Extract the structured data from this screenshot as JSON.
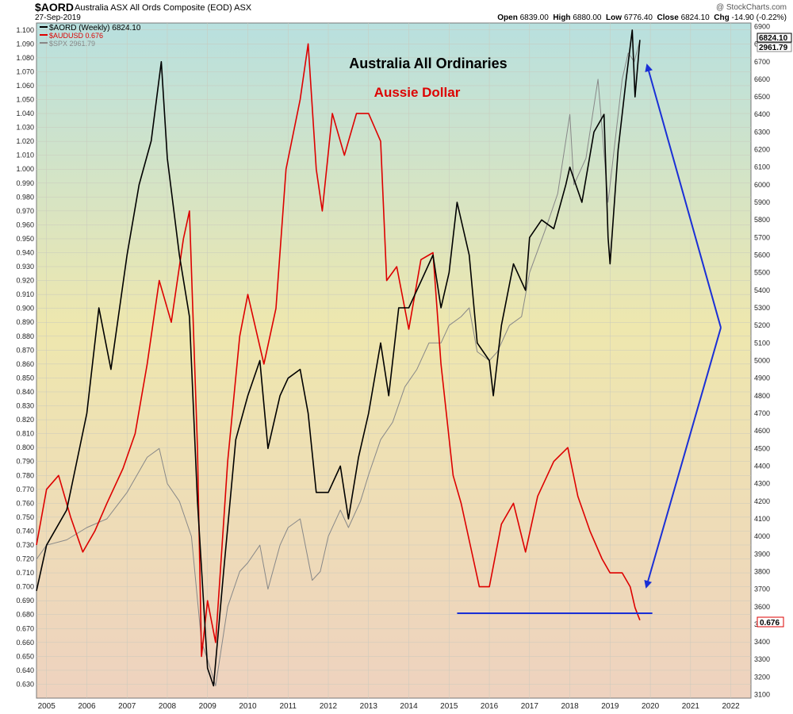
{
  "header": {
    "symbol": "$AORD",
    "full_name": "Australia ASX All Ords Composite (EOD) ASX",
    "date": "27-Sep-2019",
    "credit": "@ StockCharts.com",
    "ohlc": {
      "open_label": "Open",
      "open": "6839.00",
      "high_label": "High",
      "high": "6880.00",
      "low_label": "Low",
      "low": "6776.40",
      "close_label": "Close",
      "close": "6824.10",
      "chg_label": "Chg",
      "chg": "-14.90 (-0.22%)"
    }
  },
  "legend": [
    {
      "label": "$AORD (Weekly) 6824.10",
      "color": "#000000"
    },
    {
      "label": "$AUDUSD 0.676",
      "color": "#dd0000"
    },
    {
      "label": "$SPX 2961.79",
      "color": "#888888"
    }
  ],
  "annotations": {
    "title": "Australia All Ordinaries",
    "subtitle": "Aussie Dollar",
    "arrow_color": "#1a2fd6"
  },
  "price_tags": {
    "aord": "6824.10",
    "spx": "2961.79",
    "aud": "0.676"
  },
  "chart_data": {
    "type": "line",
    "x_ticks": [
      "2005",
      "2006",
      "2007",
      "2008",
      "2009",
      "2010",
      "2011",
      "2012",
      "2013",
      "2014",
      "2015",
      "2016",
      "2017",
      "2018",
      "2019",
      "2020",
      "2021",
      "2022"
    ],
    "left_axis": {
      "series": "$AUDUSD",
      "ylim": [
        0.62,
        1.105
      ],
      "ticks": [
        0.63,
        0.64,
        0.65,
        0.66,
        0.67,
        0.68,
        0.69,
        0.7,
        0.71,
        0.72,
        0.73,
        0.74,
        0.75,
        0.76,
        0.77,
        0.78,
        0.79,
        0.8,
        0.81,
        0.82,
        0.83,
        0.84,
        0.85,
        0.86,
        0.87,
        0.88,
        0.89,
        0.9,
        0.91,
        0.92,
        0.93,
        0.94,
        0.95,
        0.96,
        0.97,
        0.98,
        0.99,
        1.0,
        1.01,
        1.02,
        1.03,
        1.04,
        1.05,
        1.06,
        1.07,
        1.08,
        1.09,
        1.1
      ]
    },
    "right_axis": {
      "series": "$AORD",
      "ylim": [
        3080,
        6920
      ],
      "ticks": [
        3100,
        3200,
        3300,
        3400,
        3500,
        3600,
        3700,
        3800,
        3900,
        4000,
        4100,
        4200,
        4300,
        4400,
        4500,
        4600,
        4700,
        4800,
        4900,
        5000,
        5100,
        5200,
        5300,
        5400,
        5500,
        5600,
        5700,
        5800,
        5900,
        6000,
        6100,
        6200,
        6300,
        6400,
        6500,
        6600,
        6700,
        6800,
        6900
      ]
    },
    "series": [
      {
        "name": "$AORD (Weekly)",
        "axis": "right",
        "color": "#000000",
        "points": [
          [
            2004.75,
            3690
          ],
          [
            2005.0,
            3950
          ],
          [
            2005.5,
            4150
          ],
          [
            2006.0,
            4700
          ],
          [
            2006.3,
            5300
          ],
          [
            2006.6,
            4950
          ],
          [
            2007.0,
            5600
          ],
          [
            2007.3,
            6000
          ],
          [
            2007.6,
            6250
          ],
          [
            2007.85,
            6700
          ],
          [
            2008.0,
            6150
          ],
          [
            2008.3,
            5600
          ],
          [
            2008.55,
            5250
          ],
          [
            2008.75,
            4200
          ],
          [
            2009.0,
            3250
          ],
          [
            2009.15,
            3150
          ],
          [
            2009.4,
            3800
          ],
          [
            2009.7,
            4550
          ],
          [
            2010.0,
            4800
          ],
          [
            2010.3,
            5000
          ],
          [
            2010.5,
            4500
          ],
          [
            2010.8,
            4800
          ],
          [
            2011.0,
            4900
          ],
          [
            2011.3,
            4950
          ],
          [
            2011.5,
            4700
          ],
          [
            2011.7,
            4250
          ],
          [
            2012.0,
            4250
          ],
          [
            2012.3,
            4400
          ],
          [
            2012.5,
            4100
          ],
          [
            2012.75,
            4450
          ],
          [
            2013.0,
            4700
          ],
          [
            2013.3,
            5100
          ],
          [
            2013.5,
            4800
          ],
          [
            2013.75,
            5300
          ],
          [
            2014.0,
            5300
          ],
          [
            2014.3,
            5450
          ],
          [
            2014.6,
            5600
          ],
          [
            2014.8,
            5300
          ],
          [
            2015.0,
            5500
          ],
          [
            2015.2,
            5900
          ],
          [
            2015.5,
            5600
          ],
          [
            2015.7,
            5100
          ],
          [
            2016.0,
            5000
          ],
          [
            2016.1,
            4800
          ],
          [
            2016.3,
            5200
          ],
          [
            2016.6,
            5550
          ],
          [
            2016.9,
            5400
          ],
          [
            2017.0,
            5700
          ],
          [
            2017.3,
            5800
          ],
          [
            2017.6,
            5750
          ],
          [
            2017.9,
            6000
          ],
          [
            2018.0,
            6100
          ],
          [
            2018.3,
            5900
          ],
          [
            2018.6,
            6300
          ],
          [
            2018.85,
            6400
          ],
          [
            2018.95,
            5700
          ],
          [
            2019.0,
            5550
          ],
          [
            2019.2,
            6200
          ],
          [
            2019.4,
            6600
          ],
          [
            2019.55,
            6880
          ],
          [
            2019.62,
            6500
          ],
          [
            2019.74,
            6824
          ]
        ]
      },
      {
        "name": "$AUDUSD",
        "axis": "left",
        "color": "#dd0000",
        "points": [
          [
            2004.75,
            0.73
          ],
          [
            2005.0,
            0.77
          ],
          [
            2005.3,
            0.78
          ],
          [
            2005.6,
            0.75
          ],
          [
            2005.9,
            0.725
          ],
          [
            2006.2,
            0.74
          ],
          [
            2006.5,
            0.76
          ],
          [
            2006.9,
            0.785
          ],
          [
            2007.2,
            0.81
          ],
          [
            2007.5,
            0.86
          ],
          [
            2007.8,
            0.92
          ],
          [
            2008.1,
            0.89
          ],
          [
            2008.4,
            0.95
          ],
          [
            2008.55,
            0.97
          ],
          [
            2008.75,
            0.8
          ],
          [
            2008.85,
            0.65
          ],
          [
            2009.0,
            0.69
          ],
          [
            2009.2,
            0.66
          ],
          [
            2009.5,
            0.79
          ],
          [
            2009.8,
            0.88
          ],
          [
            2010.0,
            0.91
          ],
          [
            2010.4,
            0.86
          ],
          [
            2010.7,
            0.9
          ],
          [
            2010.95,
            1.0
          ],
          [
            2011.3,
            1.05
          ],
          [
            2011.5,
            1.09
          ],
          [
            2011.7,
            1.0
          ],
          [
            2011.85,
            0.97
          ],
          [
            2012.1,
            1.04
          ],
          [
            2012.4,
            1.01
          ],
          [
            2012.7,
            1.04
          ],
          [
            2013.0,
            1.04
          ],
          [
            2013.3,
            1.02
          ],
          [
            2013.45,
            0.92
          ],
          [
            2013.7,
            0.93
          ],
          [
            2014.0,
            0.885
          ],
          [
            2014.3,
            0.935
          ],
          [
            2014.6,
            0.94
          ],
          [
            2014.8,
            0.86
          ],
          [
            2015.1,
            0.78
          ],
          [
            2015.3,
            0.76
          ],
          [
            2015.6,
            0.72
          ],
          [
            2015.75,
            0.7
          ],
          [
            2016.0,
            0.7
          ],
          [
            2016.3,
            0.745
          ],
          [
            2016.6,
            0.76
          ],
          [
            2016.9,
            0.725
          ],
          [
            2017.2,
            0.765
          ],
          [
            2017.6,
            0.79
          ],
          [
            2017.95,
            0.8
          ],
          [
            2018.2,
            0.765
          ],
          [
            2018.5,
            0.74
          ],
          [
            2018.8,
            0.72
          ],
          [
            2019.0,
            0.71
          ],
          [
            2019.3,
            0.71
          ],
          [
            2019.5,
            0.7
          ],
          [
            2019.62,
            0.685
          ],
          [
            2019.74,
            0.676
          ]
        ]
      },
      {
        "name": "$SPX",
        "axis": "right",
        "color": "#888888",
        "points": [
          [
            2004.75,
            3870
          ],
          [
            2005.0,
            3950
          ],
          [
            2005.5,
            3980
          ],
          [
            2006.0,
            4050
          ],
          [
            2006.5,
            4100
          ],
          [
            2007.0,
            4250
          ],
          [
            2007.5,
            4450
          ],
          [
            2007.8,
            4500
          ],
          [
            2008.0,
            4300
          ],
          [
            2008.3,
            4200
          ],
          [
            2008.6,
            4000
          ],
          [
            2008.85,
            3400
          ],
          [
            2009.0,
            3300
          ],
          [
            2009.2,
            3150
          ],
          [
            2009.5,
            3600
          ],
          [
            2009.8,
            3800
          ],
          [
            2010.0,
            3850
          ],
          [
            2010.3,
            3950
          ],
          [
            2010.5,
            3700
          ],
          [
            2010.8,
            3950
          ],
          [
            2011.0,
            4050
          ],
          [
            2011.3,
            4100
          ],
          [
            2011.6,
            3750
          ],
          [
            2011.8,
            3800
          ],
          [
            2012.0,
            4000
          ],
          [
            2012.3,
            4150
          ],
          [
            2012.5,
            4050
          ],
          [
            2012.8,
            4200
          ],
          [
            2013.0,
            4350
          ],
          [
            2013.3,
            4550
          ],
          [
            2013.6,
            4650
          ],
          [
            2013.9,
            4850
          ],
          [
            2014.2,
            4950
          ],
          [
            2014.5,
            5100
          ],
          [
            2014.8,
            5100
          ],
          [
            2015.0,
            5200
          ],
          [
            2015.3,
            5250
          ],
          [
            2015.5,
            5300
          ],
          [
            2015.7,
            5050
          ],
          [
            2016.0,
            5000
          ],
          [
            2016.2,
            5050
          ],
          [
            2016.5,
            5200
          ],
          [
            2016.8,
            5250
          ],
          [
            2017.0,
            5500
          ],
          [
            2017.4,
            5750
          ],
          [
            2017.7,
            5950
          ],
          [
            2018.0,
            6400
          ],
          [
            2018.1,
            6000
          ],
          [
            2018.4,
            6150
          ],
          [
            2018.7,
            6600
          ],
          [
            2018.95,
            5900
          ],
          [
            2019.1,
            6200
          ],
          [
            2019.3,
            6600
          ],
          [
            2019.45,
            6750
          ],
          [
            2019.6,
            6700
          ],
          [
            2019.74,
            6820
          ]
        ]
      }
    ],
    "support_line": {
      "from": 2015.2,
      "to": 2020.05,
      "value": 0.681,
      "axis": "left",
      "color": "#1a2fd6"
    }
  }
}
